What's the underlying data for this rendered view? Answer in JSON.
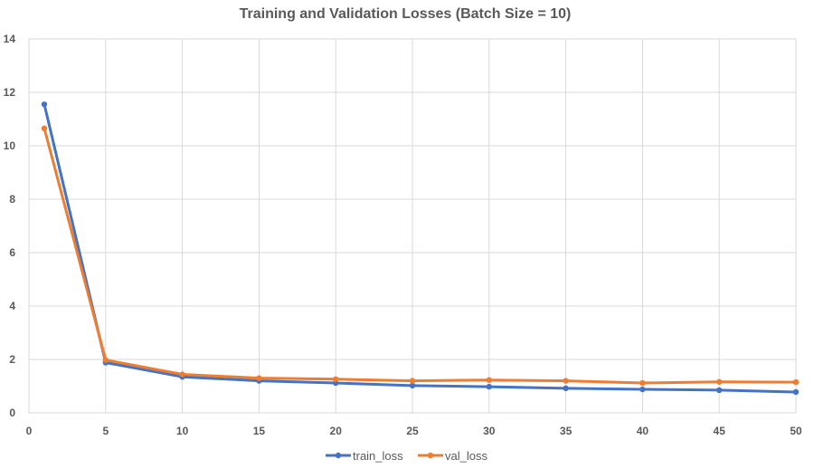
{
  "chart_data": {
    "type": "line",
    "title": "Training and Validation Losses (Batch Size = 10)",
    "xlabel": "",
    "ylabel": "",
    "xlim": [
      0,
      50
    ],
    "ylim": [
      0,
      14
    ],
    "x_ticks": [
      0,
      5,
      10,
      15,
      20,
      25,
      30,
      35,
      40,
      45,
      50
    ],
    "y_ticks": [
      0,
      2,
      4,
      6,
      8,
      10,
      12,
      14
    ],
    "x": [
      1,
      5,
      10,
      15,
      20,
      25,
      30,
      35,
      40,
      45,
      50
    ],
    "series": [
      {
        "name": "train_loss",
        "color": "#4472c4",
        "values": [
          11.55,
          1.88,
          1.35,
          1.2,
          1.12,
          1.02,
          0.98,
          0.92,
          0.88,
          0.85,
          0.78
        ]
      },
      {
        "name": "val_loss",
        "color": "#ed7d31",
        "values": [
          10.65,
          1.98,
          1.44,
          1.3,
          1.26,
          1.2,
          1.23,
          1.2,
          1.12,
          1.16,
          1.15
        ]
      }
    ],
    "grid": true,
    "legend_position": "bottom"
  }
}
